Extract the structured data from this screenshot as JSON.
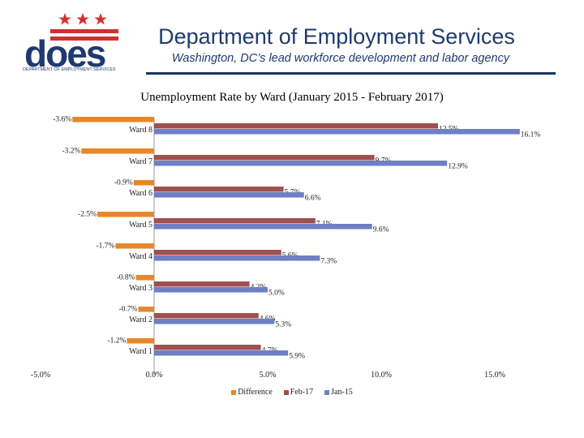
{
  "header": {
    "title": "Department of Employment Services",
    "tagline": "Washington, DC’s lead workforce development and labor agency",
    "logo_text": "does",
    "logo_subtitle": "DEPARTMENT OF EMPLOYMENT SERVICES"
  },
  "colors": {
    "title": "#1f3a6e",
    "logo_blue": "#1f3a6e",
    "logo_red": "#d32f2f",
    "difference": "#e8862a",
    "feb17": "#a0504f",
    "jan15": "#6e7fc4"
  },
  "chart_data": {
    "type": "bar",
    "orientation": "horizontal",
    "title": "Unemployment Rate by Ward (January 2015 - February 2017)",
    "categories": [
      "Ward 8",
      "Ward 7",
      "Ward 6",
      "Ward 5",
      "Ward 4",
      "Ward 3",
      "Ward 2",
      "Ward 1"
    ],
    "series": [
      {
        "name": "Difference",
        "values": [
          -3.6,
          -3.2,
          -0.9,
          -2.5,
          -1.7,
          -0.8,
          -0.7,
          -1.2
        ],
        "labels": [
          "-3.6%",
          "-3.2%",
          "-0.9%",
          "-2.5%",
          "-1.7%",
          "-0.8%",
          "-0.7%",
          "-1.2%"
        ]
      },
      {
        "name": "Feb-17",
        "values": [
          12.5,
          9.7,
          5.7,
          7.1,
          5.6,
          4.2,
          4.6,
          4.7
        ],
        "labels": [
          "12.5%",
          "9.7%",
          "5.7%",
          "7.1%",
          "5.6%",
          "4.2%",
          "4.6%",
          "4.7%"
        ]
      },
      {
        "name": "Jan-15",
        "values": [
          16.1,
          12.9,
          6.6,
          9.6,
          7.3,
          5.0,
          5.3,
          5.9
        ],
        "labels": [
          "16.1%",
          "12.9%",
          "6.6%",
          "9.6%",
          "7.3%",
          "5.0%",
          "5.3%",
          "5.9%"
        ]
      }
    ],
    "xlim": [
      -5,
      15
    ],
    "xticks": [
      -5,
      0,
      5,
      10,
      15
    ],
    "xtick_labels": [
      "-5.0%",
      "0.0%",
      "5.0%",
      "10.0%",
      "15.0%"
    ],
    "grid": false,
    "legend_position": "bottom-center"
  }
}
